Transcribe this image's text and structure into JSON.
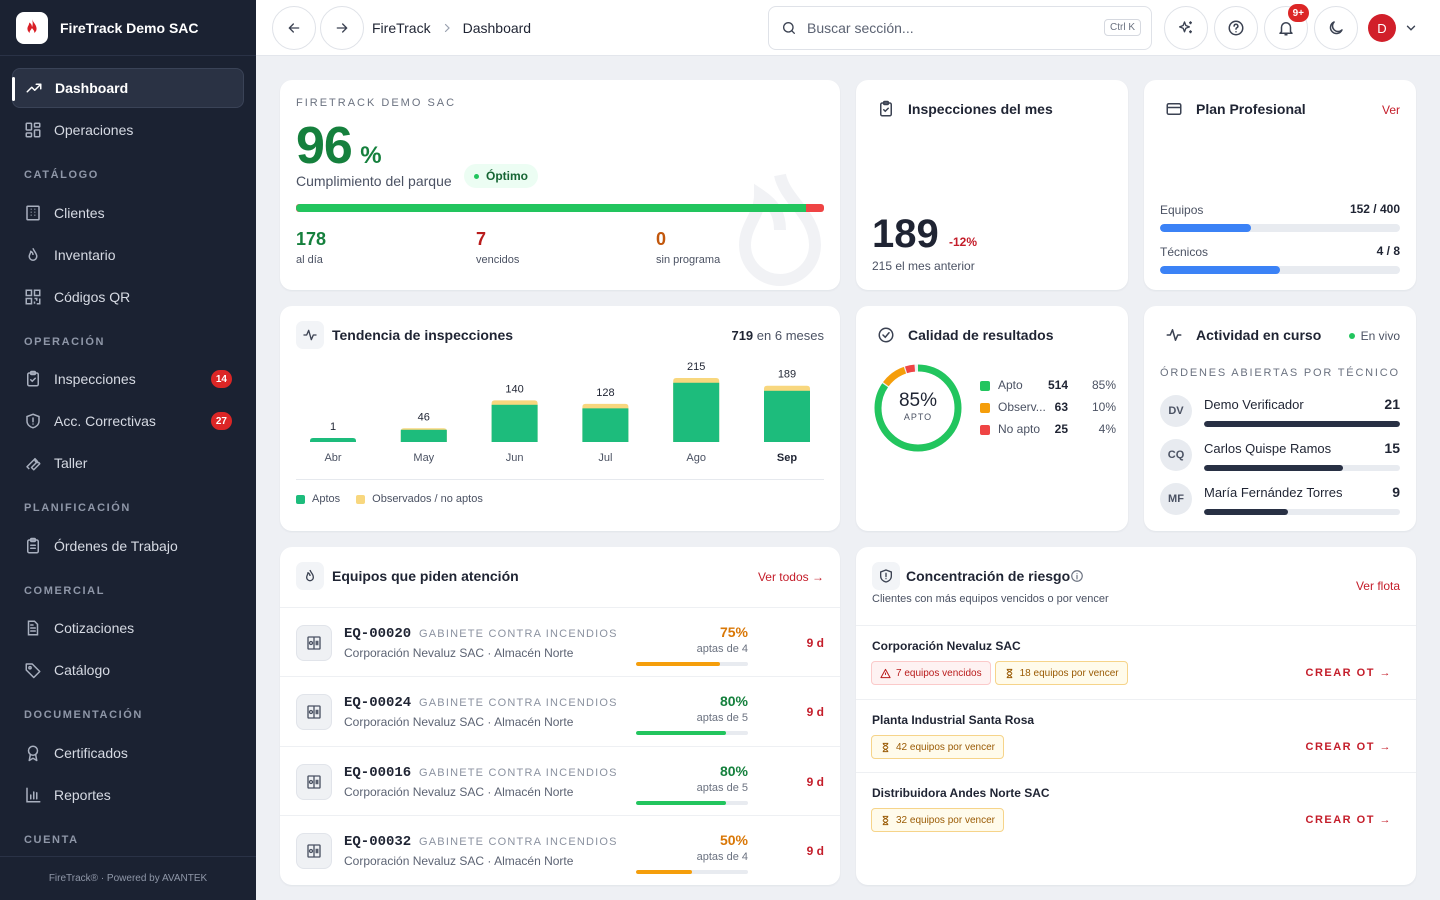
{
  "brand": {
    "name": "FireTrack Demo SAC"
  },
  "sidebar": {
    "items": [
      {
        "label": "Dashboard"
      },
      {
        "label": "Operaciones"
      },
      {
        "label": "Clientes"
      },
      {
        "label": "Inventario"
      },
      {
        "label": "Códigos QR"
      },
      {
        "label": "Inspecciones",
        "badge": "14"
      },
      {
        "label": "Acc. Correctivas",
        "badge": "27"
      },
      {
        "label": "Taller"
      },
      {
        "label": "Órdenes de Trabajo"
      },
      {
        "label": "Cotizaciones"
      },
      {
        "label": "Catálogo"
      },
      {
        "label": "Certificados"
      },
      {
        "label": "Reportes"
      }
    ],
    "sections": [
      "CATÁLOGO",
      "OPERACIÓN",
      "PLANIFICACIÓN",
      "COMERCIAL",
      "DOCUMENTACIÓN",
      "CUENTA"
    ],
    "footer": "FireTrack® · Powered by AVANTEK"
  },
  "topbar": {
    "breadcrumb": [
      "FireTrack",
      "Dashboard"
    ],
    "search_placeholder": "Buscar sección...",
    "search_shortcut": "Ctrl K",
    "notif_badge": "9+",
    "avatar_initial": "D"
  },
  "compliance": {
    "org": "FIRETRACK DEMO SAC",
    "value": "96",
    "unit": "%",
    "label": "Cumplimiento del parque",
    "status": "Óptimo",
    "progress": 0.965,
    "stats": [
      {
        "value": "178",
        "label": "al día"
      },
      {
        "value": "7",
        "label": "vencidos"
      },
      {
        "value": "0",
        "label": "sin programa"
      }
    ]
  },
  "monthly": {
    "title": "Inspecciones del mes",
    "value": "189",
    "delta": "-12%",
    "previous": "215 el mes anterior"
  },
  "plan": {
    "title": "Plan Profesional",
    "link": "Ver",
    "rows": [
      {
        "label": "Equipos",
        "value": "152 / 400",
        "fraction": 0.38
      },
      {
        "label": "Técnicos",
        "value": "4 / 8",
        "fraction": 0.5
      }
    ]
  },
  "trend": {
    "title": "Tendencia de inspecciones",
    "total": "719",
    "total_suffix": "en 6 meses",
    "legend": [
      "Aptos",
      "Observados / no aptos"
    ]
  },
  "chart_data": {
    "type": "bar",
    "categories": [
      "Abr",
      "May",
      "Jun",
      "Jul",
      "Ago",
      "Sep"
    ],
    "series": [
      {
        "name": "Aptos",
        "values": [
          1,
          41,
          125,
          113,
          199,
          172
        ]
      },
      {
        "name": "Observados / no aptos",
        "values": [
          0,
          5,
          15,
          15,
          16,
          17
        ]
      }
    ],
    "totals": [
      1,
      46,
      140,
      128,
      215,
      189
    ],
    "colors": {
      "Aptos": "#1dbc7c",
      "Observados / no aptos": "#f8d77e"
    },
    "stacked": true,
    "grid": false,
    "legend": "bottom"
  },
  "quality": {
    "title": "Calidad de resultados",
    "center_value": "85%",
    "center_label": "APTO",
    "rows": [
      {
        "label": "Apto",
        "count": 514,
        "pct": "85%",
        "color": "#22c55e",
        "fraction": 0.85
      },
      {
        "label": "Observ...",
        "count": 63,
        "pct": "10%",
        "color": "#f59e0b",
        "fraction": 0.1
      },
      {
        "label": "No apto",
        "count": 25,
        "pct": "4%",
        "color": "#ef4444",
        "fraction": 0.04
      }
    ]
  },
  "activity": {
    "title": "Actividad en curso",
    "live": "En vivo",
    "subtitle": "ÓRDENES ABIERTAS POR TÉCNICO",
    "techs": [
      {
        "initials": "DV",
        "name": "Demo Verificador",
        "count": "21",
        "fraction": 1.0
      },
      {
        "initials": "CQ",
        "name": "Carlos Quispe Ramos",
        "count": "15",
        "fraction": 0.71
      },
      {
        "initials": "MF",
        "name": "María Fernández Torres",
        "count": "9",
        "fraction": 0.43
      }
    ]
  },
  "equipment": {
    "title": "Equipos que piden atención",
    "link": "Ver todos →",
    "rows": [
      {
        "code": "EQ-00020",
        "type": "GABINETE CONTRA INCENDIOS",
        "client": "Corporación Nevaluz SAC · Almacén Norte",
        "pct": "75%",
        "apt": "aptas de 4",
        "fraction": 0.75,
        "color": "#f59e0b",
        "days": "9 d"
      },
      {
        "code": "EQ-00024",
        "type": "GABINETE CONTRA INCENDIOS",
        "client": "Corporación Nevaluz SAC · Almacén Norte",
        "pct": "80%",
        "apt": "aptas de 5",
        "fraction": 0.8,
        "color": "#22c55e",
        "days": "9 d"
      },
      {
        "code": "EQ-00016",
        "type": "GABINETE CONTRA INCENDIOS",
        "client": "Corporación Nevaluz SAC · Almacén Norte",
        "pct": "80%",
        "apt": "aptas de 5",
        "fraction": 0.8,
        "color": "#22c55e",
        "days": "9 d"
      },
      {
        "code": "EQ-00032",
        "type": "GABINETE CONTRA INCENDIOS",
        "client": "Corporación Nevaluz SAC · Almacén Norte",
        "pct": "50%",
        "apt": "aptas de 4",
        "fraction": 0.5,
        "color": "#f59e0b",
        "days": "9 d"
      }
    ]
  },
  "risk": {
    "title": "Concentración de riesgo",
    "subtitle": "Clientes con más equipos vencidos o por vencer",
    "link": "Ver flota",
    "action": "CREAR OT →",
    "clients": [
      {
        "name": "Corporación Nevaluz SAC",
        "overdue": "7 equipos vencidos",
        "upcoming": "18 equipos por vencer"
      },
      {
        "name": "Planta Industrial Santa Rosa",
        "upcoming": "42 equipos por vencer"
      },
      {
        "name": "Distribuidora Andes Norte SAC",
        "upcoming": "32 equipos por vencer"
      }
    ]
  }
}
